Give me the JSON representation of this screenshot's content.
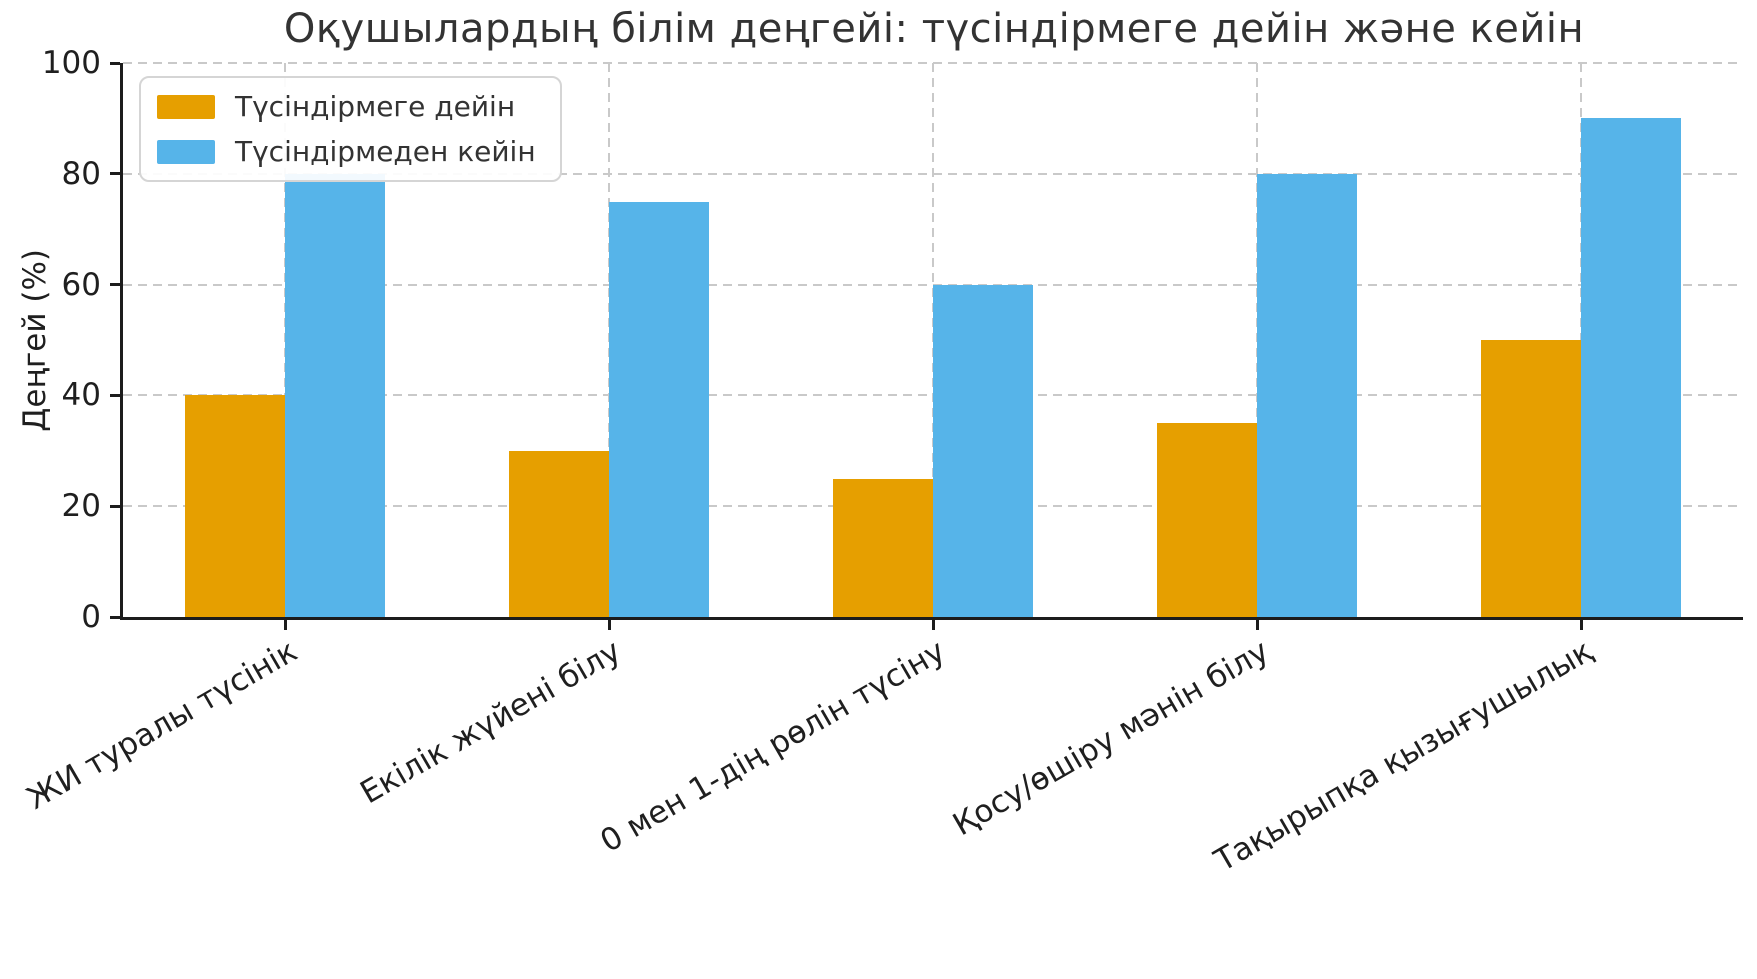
{
  "title": "Оқушылардың білім деңгейі: түсіндірмеге дейін және кейін",
  "chart_data": {
    "type": "bar",
    "title": "Оқушылардың білім деңгейі: түсіндірмеге дейін және кейін",
    "xlabel": "",
    "ylabel": "Деңгей (%)",
    "ylim": [
      0,
      100
    ],
    "yticks": [
      "0",
      "20",
      "40",
      "60",
      "80",
      "100"
    ],
    "grid": "dashed horizontal and vertical, light gray",
    "legend_position": "upper left",
    "categories": [
      "ЖИ туралы түсінік",
      "Екілік жүйені білу",
      "0 мен 1-дің рөлін түсіну",
      "Қосу/өшіру мәнін білу",
      "Тақырыпқа қызығушылық"
    ],
    "series": [
      {
        "name": "Түсіндірмеге дейін",
        "color": "#E69F00",
        "values": [
          40,
          30,
          25,
          35,
          50
        ]
      },
      {
        "name": "Түсіндірмеден кейін",
        "color": "#56B4E9",
        "values": [
          80,
          75,
          60,
          80,
          90
        ]
      }
    ]
  }
}
